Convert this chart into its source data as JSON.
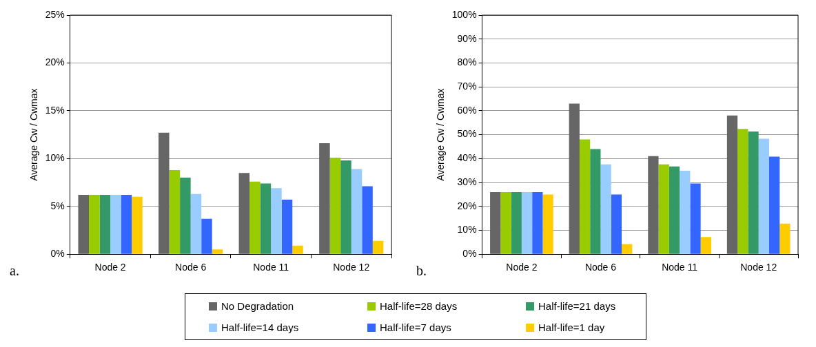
{
  "chart_data": [
    {
      "type": "bar",
      "ylabel": "Average Cw / Cwmax",
      "annotations": [
        "a."
      ],
      "categories": [
        "Node 2",
        "Node 6",
        "Node 11",
        "Node 12"
      ],
      "ylim": [
        0,
        25
      ],
      "yticks": [
        {
          "value": 0,
          "label": "0%"
        },
        {
          "value": 5,
          "label": "5%"
        },
        {
          "value": 10,
          "label": "10%"
        },
        {
          "value": 15,
          "label": "15%"
        },
        {
          "value": 20,
          "label": "20%"
        },
        {
          "value": 25,
          "label": "25%"
        }
      ],
      "grid": "y",
      "legend": "bottom",
      "series": [
        {
          "name": "No Degradation",
          "color": "#666666",
          "values": [
            6.2,
            12.7,
            8.5,
            11.6
          ]
        },
        {
          "name": "Half-life=28 days",
          "color": "#99cc00",
          "values": [
            6.2,
            8.8,
            7.6,
            10.1
          ]
        },
        {
          "name": "Half-life=21 days",
          "color": "#339966",
          "values": [
            6.2,
            8.0,
            7.4,
            9.8
          ]
        },
        {
          "name": "Half-life=14 days",
          "color": "#99ccff",
          "values": [
            6.2,
            6.3,
            6.9,
            8.9
          ]
        },
        {
          "name": "Half-life=7 days",
          "color": "#3366ff",
          "values": [
            6.2,
            3.7,
            5.7,
            7.1
          ]
        },
        {
          "name": "Half-life=1 day",
          "color": "#ffcc00",
          "values": [
            6.0,
            0.5,
            0.9,
            1.4
          ]
        }
      ]
    },
    {
      "type": "bar",
      "ylabel": "Average Cw / Cwmax",
      "annotations": [
        "b."
      ],
      "categories": [
        "Node 2",
        "Node 6",
        "Node 11",
        "Node 12"
      ],
      "ylim": [
        0,
        100
      ],
      "yticks": [
        {
          "value": 0,
          "label": "0%"
        },
        {
          "value": 10,
          "label": "10%"
        },
        {
          "value": 20,
          "label": "20%"
        },
        {
          "value": 30,
          "label": "30%"
        },
        {
          "value": 40,
          "label": "40%"
        },
        {
          "value": 50,
          "label": "50%"
        },
        {
          "value": 60,
          "label": "60%"
        },
        {
          "value": 70,
          "label": "70%"
        },
        {
          "value": 80,
          "label": "80%"
        },
        {
          "value": 90,
          "label": "90%"
        },
        {
          "value": 100,
          "label": "100%"
        }
      ],
      "grid": "y",
      "series": [
        {
          "color": "#666666",
          "values": [
            26,
            63,
            41,
            58
          ]
        },
        {
          "color": "#99cc00",
          "values": [
            26,
            48,
            37.6,
            52.4
          ]
        },
        {
          "color": "#339966",
          "values": [
            26,
            44,
            36.7,
            51.3
          ]
        },
        {
          "color": "#99ccff",
          "values": [
            26,
            37.6,
            34.9,
            48.3
          ]
        },
        {
          "color": "#3366ff",
          "values": [
            26,
            25,
            29.6,
            40.8
          ]
        },
        {
          "color": "#ffcc00",
          "values": [
            25,
            4.2,
            7.2,
            12.8
          ]
        }
      ]
    }
  ]
}
